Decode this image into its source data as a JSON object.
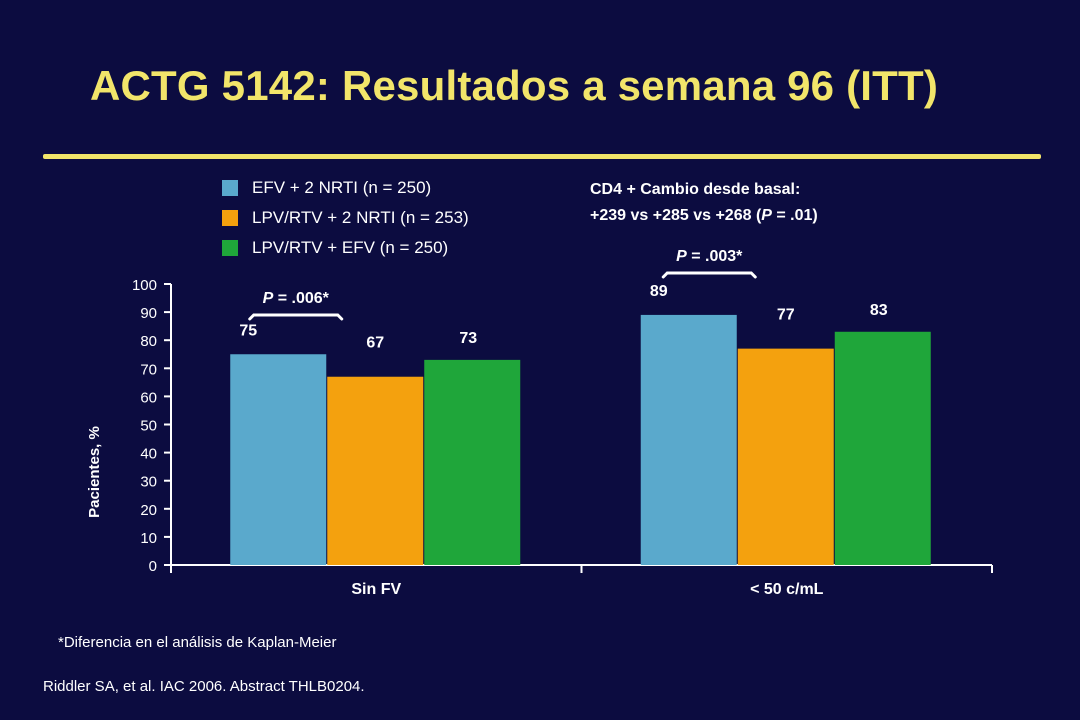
{
  "slide": {
    "title": "ACTG 5142: Resultados a semana 96 (ITT)",
    "cd4_note": {
      "line1": "CD4 + Cambio desde basal:",
      "line2_prefix": "+239 vs +285 vs +268 (",
      "line2_p": "P",
      "line2_suffix": " = .01)"
    },
    "footnote": "*Diferencia en el análisis de Kaplan-Meier",
    "citation": "Riddler SA, et al. IAC 2006. Abstract THLB0204."
  },
  "colors": {
    "background": "#0c0c40",
    "title": "#f2e56a",
    "efv": "#5aa9cc",
    "lpv_nrti": "#f4a10e",
    "lpv_efv": "#1fa63a"
  },
  "chart_data": {
    "type": "bar",
    "categories": [
      "Sin FV",
      "< 50 c/mL"
    ],
    "series": [
      {
        "name": "EFV + 2 NRTI (n = 250)",
        "values": [
          75,
          89
        ],
        "color": "#5aa9cc"
      },
      {
        "name": "LPV/RTV + 2 NRTI (n = 253)",
        "values": [
          67,
          77
        ],
        "color": "#f4a10e"
      },
      {
        "name": "LPV/RTV + EFV (n = 250)",
        "values": [
          73,
          83
        ],
        "color": "#1fa63a"
      }
    ],
    "ylabel": "Pacientes, %",
    "ylim": [
      0,
      100
    ],
    "yticks": [
      0,
      10,
      20,
      30,
      40,
      50,
      60,
      70,
      80,
      90,
      100
    ],
    "annotations": [
      {
        "category": "Sin FV",
        "p": "P",
        "text": " = .006*"
      },
      {
        "category": "< 50 c/mL",
        "p": "P",
        "text": " = .003*"
      }
    ],
    "legend_position": "top-left",
    "grid": false
  }
}
